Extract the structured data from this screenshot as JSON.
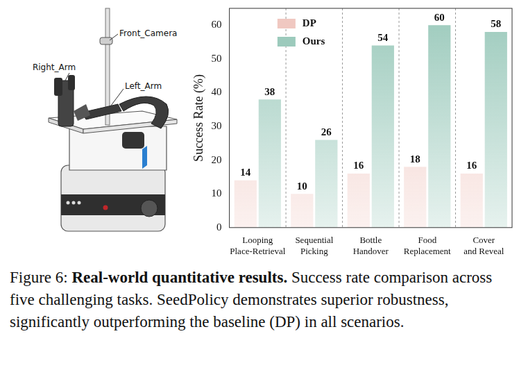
{
  "diagram": {
    "labels": [
      "Front_Camera",
      "Right_Arm",
      "Left_Arm"
    ]
  },
  "chart_data": {
    "type": "bar",
    "y_label": "Success Rate (%)",
    "categories": [
      "Looping Place-Retrieval",
      "Sequential Picking",
      "Bottle Handover",
      "Food Replacement",
      "Cover and Reveal"
    ],
    "series": [
      {
        "name": "DP",
        "color": "#f0c8c1",
        "values": [
          14,
          10,
          16,
          18,
          16
        ]
      },
      {
        "name": "Ours",
        "color": "#9ccabc",
        "values": [
          38,
          26,
          54,
          60,
          58
        ]
      }
    ],
    "ylim": [
      0,
      65
    ],
    "yticks": [
      0,
      10,
      20,
      30,
      40,
      50,
      60
    ],
    "grid": "x",
    "legend": "upper left",
    "data_labels": true
  },
  "caption": {
    "label": "Figure 6:",
    "title": "Real-world quantitative results.",
    "text": "Success rate comparison across five challenging tasks. SeedPolicy demonstrates superior robustness, significantly outperforming the baseline (DP) in all scenarios."
  }
}
